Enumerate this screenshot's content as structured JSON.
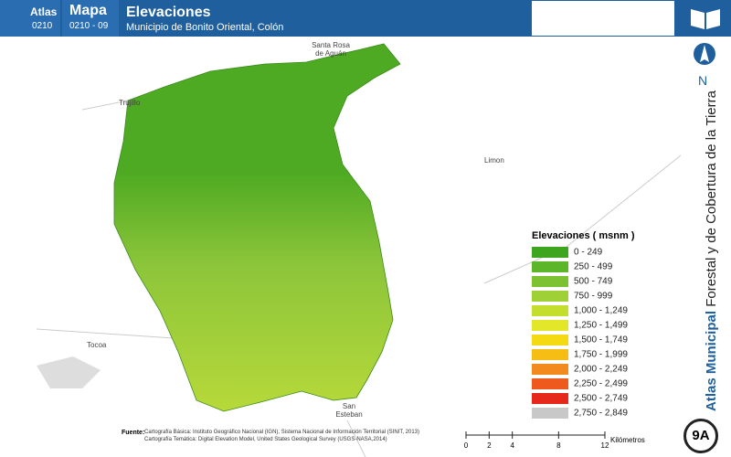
{
  "header": {
    "atlas_label": "Atlas",
    "atlas_code": "0210",
    "map_label": "Mapa",
    "map_code": "0210 - 09",
    "title": "Elevaciones",
    "subtitle": "Municipio de Bonito Oriental, Colón"
  },
  "places": [
    "Santa Rosa de Aguán",
    "Trujillo",
    "Limon",
    "Tocoa",
    "San Esteban"
  ],
  "legend": {
    "title": "Elevaciones ( msnm )",
    "items": [
      {
        "label": "0 - 249",
        "color": "#3ea51f"
      },
      {
        "label": "250 - 499",
        "color": "#5db52a"
      },
      {
        "label": "500 - 749",
        "color": "#7cc232"
      },
      {
        "label": "750 - 999",
        "color": "#9fd036"
      },
      {
        "label": "1,000 - 1,249",
        "color": "#c3de2d"
      },
      {
        "label": "1,250 - 1,499",
        "color": "#e2e829"
      },
      {
        "label": "1,500 - 1,749",
        "color": "#f3da12"
      },
      {
        "label": "1,750 - 1,999",
        "color": "#f6bd14"
      },
      {
        "label": "2,000 - 2,249",
        "color": "#f28a1d"
      },
      {
        "label": "2,250 - 2,499",
        "color": "#ee5a1e"
      },
      {
        "label": "2,500 - 2,749",
        "color": "#e5281b"
      },
      {
        "label": "2,750 - 2,849",
        "color": "#c8c8c8"
      }
    ]
  },
  "north": "N",
  "side": {
    "bold": "Atlas Municipal",
    "rest": "Forestal y de Cobertura de la Tierra"
  },
  "badge": "9A",
  "scale": {
    "ticks": [
      0,
      2,
      4,
      8,
      12
    ],
    "unit": "Kilómetros"
  },
  "source": {
    "label": "Fuente:",
    "lines": [
      "Cartografía Básica: Instituto Geográfico Nacional (IGN), Sistema Nacional de Información Territorial (SINIT, 2013)",
      "Cartografía Temática: Digital Elevation Model, United States Geological Survey (USGS-NASA,2014)"
    ]
  }
}
